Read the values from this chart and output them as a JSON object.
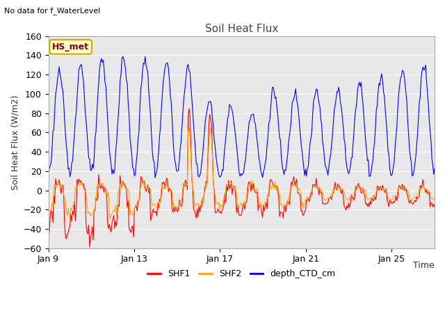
{
  "title": "Soil Heat Flux",
  "subtitle": "No data for f_WaterLevel",
  "ylabel": "Soil Heat Flux (W/m2)",
  "xlabel": "Time",
  "ylim": [
    -60,
    160
  ],
  "yticks": [
    -60,
    -40,
    -20,
    0,
    20,
    40,
    60,
    80,
    100,
    120,
    140,
    160
  ],
  "plot_bg": "#e8e8e8",
  "fig_bg": "#ffffff",
  "legend_label": "HS_met",
  "legend_bg": "#ffffcc",
  "legend_border": "#ccaa00",
  "series_colors": {
    "SHF1": "#ff0000",
    "SHF2": "#ffa500",
    "depth_CTD_cm": "#0000ff"
  },
  "xtick_labels": [
    "Jan 9",
    "Jan 13",
    "Jan 17",
    "Jan 21",
    "Jan 25"
  ],
  "xtick_positions": [
    0,
    4,
    8,
    12,
    16
  ]
}
